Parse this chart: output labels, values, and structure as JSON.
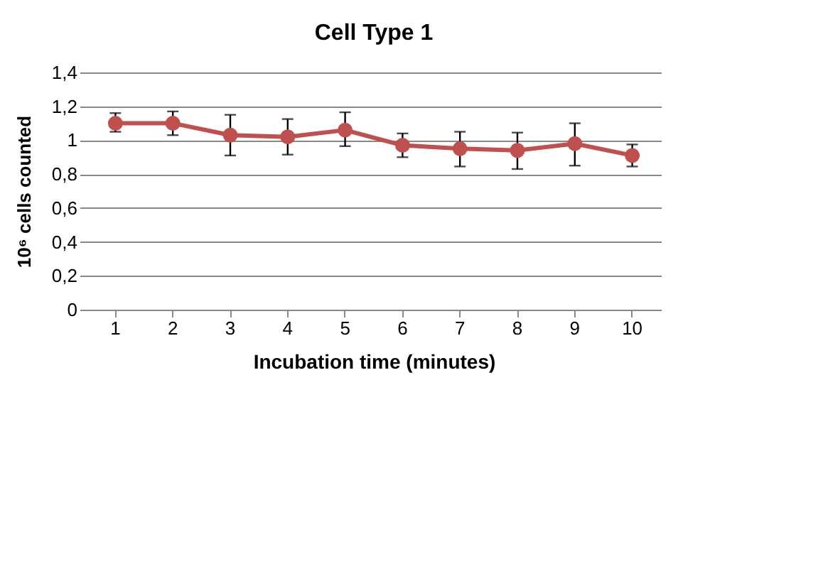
{
  "chart_data": {
    "type": "line",
    "title": "Cell Type 1",
    "xlabel": "Incubation time (minutes)",
    "ylabel": "10⁶ cells counted",
    "categories": [
      "1",
      "2",
      "3",
      "4",
      "5",
      "6",
      "7",
      "8",
      "9",
      "10"
    ],
    "series": [
      {
        "color": "#c0504d",
        "values": [
          1.1,
          1.1,
          1.03,
          1.02,
          1.06,
          0.97,
          0.95,
          0.94,
          0.98,
          0.91
        ],
        "errors": [
          [
            1.05,
            1.16
          ],
          [
            1.03,
            1.17
          ],
          [
            0.91,
            1.15
          ],
          [
            0.915,
            1.125
          ],
          [
            0.965,
            1.165
          ],
          [
            0.9,
            1.04
          ],
          [
            0.845,
            1.05
          ],
          [
            0.83,
            1.045
          ],
          [
            0.85,
            1.1
          ],
          [
            0.845,
            0.975
          ]
        ]
      }
    ],
    "ylim": [
      0,
      1.4
    ],
    "yticks": [
      0,
      {
        "value": 0.2,
        "label": "0,2"
      },
      {
        "value": 0.4,
        "label": "0,4"
      },
      {
        "value": 0.6,
        "label": "0,6"
      },
      {
        "value": 0.8,
        "label": "0,8"
      },
      1,
      {
        "value": 1.2,
        "label": "1,2"
      },
      {
        "value": 1.4,
        "label": "1,4"
      }
    ],
    "grid": "y",
    "legend": false,
    "marker": "circle",
    "line_style": "solid"
  }
}
